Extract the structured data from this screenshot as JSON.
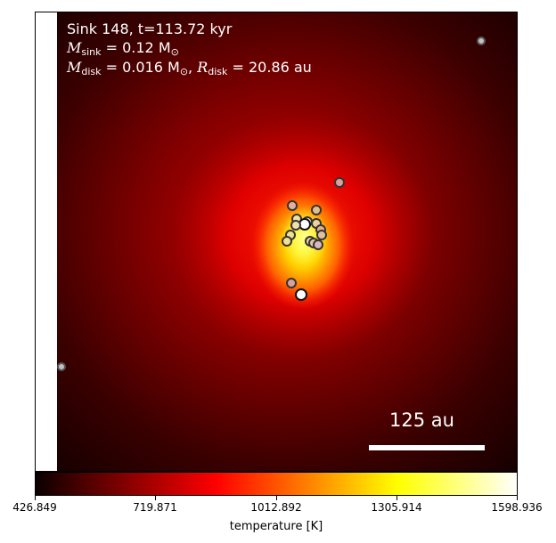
{
  "annotation": {
    "line1": "Sink 148, t=113.72 kyr",
    "line2_var": "M",
    "line2_sub": "sink",
    "line2_rest": " = 0.12 M",
    "line2_unit_sub": "⊙",
    "line3_var1": "M",
    "line3_sub1": "disk",
    "line3_mid": " = 0.016 M",
    "line3_unit_sub": "⊙",
    "line3_sep": ", ",
    "line3_var2": "R",
    "line3_sub2": "disk",
    "line3_rest": " = 20.86 au"
  },
  "scale_bar": {
    "label": "125 au"
  },
  "colorbar": {
    "label": "temperature [K]",
    "ticks": [
      "426.849",
      "719.871",
      "1012.892",
      "1305.914",
      "1598.936"
    ],
    "colormap": "hot"
  },
  "colors": {
    "background_dark": "#1a0000",
    "core": "#ffff60"
  }
}
